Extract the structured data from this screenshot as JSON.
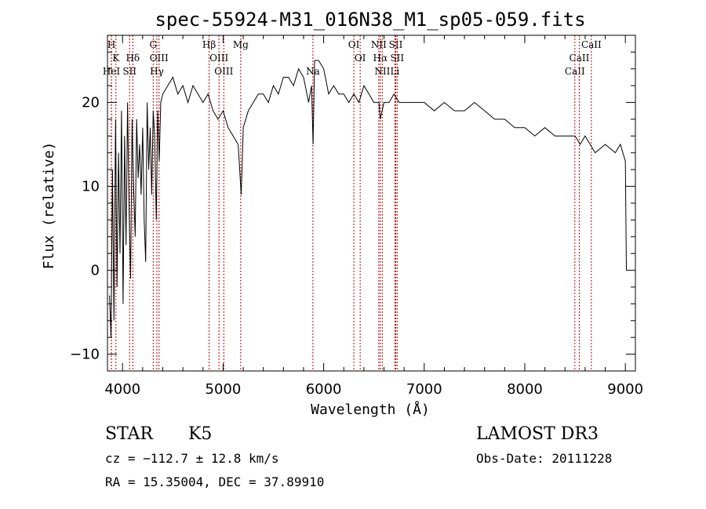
{
  "chart_data": {
    "type": "line",
    "title": "spec-55924-M31_016N38_M1_sp05-059.fits",
    "xlabel": "Wavelength (Å)",
    "ylabel": "Flux (relative)",
    "xlim": [
      3850,
      9100
    ],
    "ylim": [
      -12,
      28
    ],
    "xticks": [
      4000,
      5000,
      6000,
      7000,
      8000,
      9000
    ],
    "yticks": [
      -10,
      0,
      10,
      20
    ],
    "series": [
      {
        "name": "flux",
        "x": [
          3870,
          3885,
          3900,
          3915,
          3930,
          3945,
          3960,
          3975,
          3990,
          4005,
          4020,
          4035,
          4050,
          4065,
          4080,
          4095,
          4110,
          4125,
          4140,
          4155,
          4170,
          4185,
          4200,
          4215,
          4230,
          4245,
          4260,
          4275,
          4290,
          4305,
          4320,
          4335,
          4350,
          4365,
          4380,
          4400,
          4450,
          4500,
          4550,
          4600,
          4650,
          4700,
          4750,
          4800,
          4850,
          4900,
          4950,
          5000,
          5050,
          5100,
          5150,
          5180,
          5200,
          5250,
          5300,
          5350,
          5400,
          5450,
          5500,
          5550,
          5600,
          5650,
          5700,
          5750,
          5800,
          5850,
          5880,
          5895,
          5910,
          5950,
          6000,
          6050,
          6100,
          6150,
          6200,
          6250,
          6300,
          6350,
          6400,
          6450,
          6500,
          6550,
          6563,
          6600,
          6650,
          6700,
          6750,
          6800,
          6900,
          7000,
          7100,
          7200,
          7300,
          7400,
          7500,
          7600,
          7700,
          7800,
          7900,
          8000,
          8100,
          8200,
          8300,
          8400,
          8500,
          8550,
          8600,
          8700,
          8800,
          8900,
          8950,
          9000,
          9010
        ],
        "values": [
          -3,
          -8,
          12,
          -6,
          18,
          -2,
          14,
          2,
          19,
          -4,
          16,
          3,
          20,
          7,
          -1,
          18,
          10,
          4,
          18,
          11,
          15,
          9,
          17,
          6,
          1,
          20,
          12,
          17,
          9,
          19,
          16,
          6,
          19,
          13,
          20,
          21,
          22,
          23,
          21,
          22,
          20,
          22,
          21,
          20,
          21,
          19,
          18,
          19,
          17,
          16,
          15,
          9,
          17,
          19,
          20,
          21,
          21,
          20,
          22,
          21,
          23,
          23,
          22,
          24,
          23,
          20,
          22,
          15,
          25,
          25,
          24,
          21,
          22,
          21,
          21,
          20,
          21,
          20,
          22,
          21,
          20,
          20,
          18,
          20,
          20,
          21,
          20,
          20,
          20,
          20,
          19,
          20,
          19,
          19,
          20,
          19,
          18,
          18,
          17,
          17,
          16,
          17,
          16,
          16,
          16,
          15,
          16,
          14,
          15,
          14,
          15,
          13,
          0
        ],
        "color": "#000000"
      }
    ],
    "emission_lines": [
      {
        "label": "H",
        "x": 3890,
        "row": 1
      },
      {
        "label": "K",
        "x": 3934,
        "row": 2
      },
      {
        "label": "HeI",
        "x": 3889,
        "row": 3
      },
      {
        "label": "SII",
        "x": 4070,
        "row": 3
      },
      {
        "label": "Hδ",
        "x": 4102,
        "row": 2
      },
      {
        "label": "G",
        "x": 4305,
        "row": 1
      },
      {
        "label": "OIII",
        "x": 4363,
        "row": 2
      },
      {
        "label": "Hγ",
        "x": 4341,
        "row": 3
      },
      {
        "label": "Hβ",
        "x": 4861,
        "row": 1
      },
      {
        "label": "OIII",
        "x": 4959,
        "row": 2
      },
      {
        "label": "OIII",
        "x": 5007,
        "row": 3
      },
      {
        "label": "Mg",
        "x": 5175,
        "row": 1
      },
      {
        "label": "Na",
        "x": 5893,
        "row": 3
      },
      {
        "label": "OI",
        "x": 6300,
        "row": 1
      },
      {
        "label": "OI",
        "x": 6363,
        "row": 2
      },
      {
        "label": "NII",
        "x": 6548,
        "row": 1
      },
      {
        "label": "SII",
        "x": 6717,
        "row": 1
      },
      {
        "label": "Hα",
        "x": 6563,
        "row": 2
      },
      {
        "label": "SII",
        "x": 6731,
        "row": 2
      },
      {
        "label": "NII",
        "x": 6583,
        "row": 3
      },
      {
        "label": "Li",
        "x": 6708,
        "row": 3
      },
      {
        "label": "CaII",
        "x": 8498,
        "row": 3
      },
      {
        "label": "CaII",
        "x": 8542,
        "row": 2
      },
      {
        "label": "CaII",
        "x": 8662,
        "row": 1
      }
    ]
  },
  "info": {
    "class": "STAR",
    "subclass": "K5",
    "survey": "LAMOST DR3",
    "cz": "cz = −112.7 ± 12.8 km/s",
    "obs_date": "Obs-Date: 20111228",
    "radec": "RA =  15.35004, DEC =  37.89910"
  }
}
